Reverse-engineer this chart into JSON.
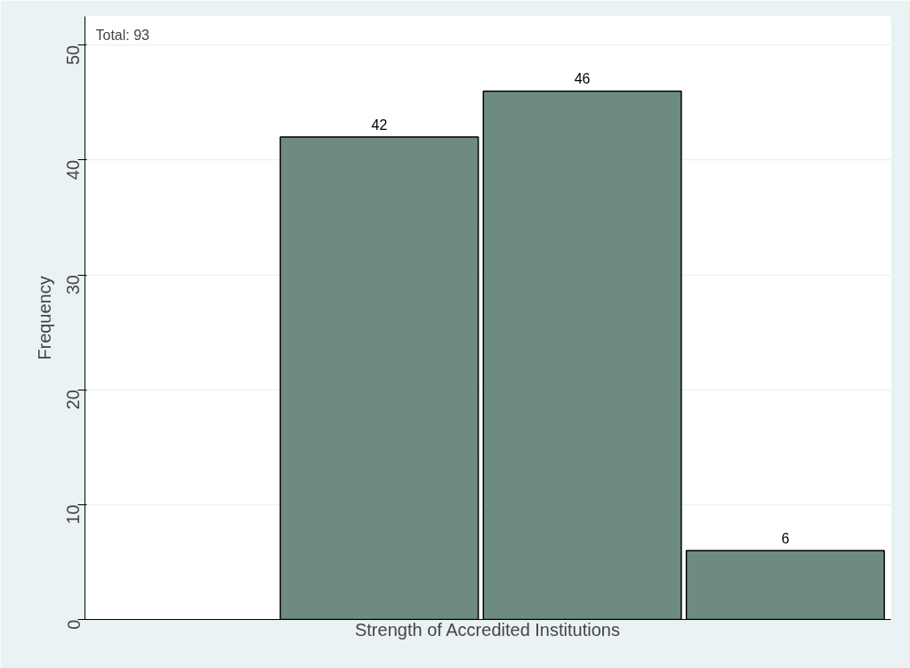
{
  "chart_data": {
    "type": "bar",
    "xlabel": "Strength of Accredited Institutions",
    "ylabel": "Frequency",
    "categories": [
      null,
      null,
      null,
      null
    ],
    "values": [
      null,
      42,
      46,
      6
    ],
    "color": "#6e8b80",
    "data_labels": true,
    "ylim": [
      0,
      52.5
    ],
    "yticks": [
      0,
      10,
      20,
      30,
      40,
      50
    ],
    "grid": "y",
    "annotations": [
      "Total: 93"
    ]
  }
}
